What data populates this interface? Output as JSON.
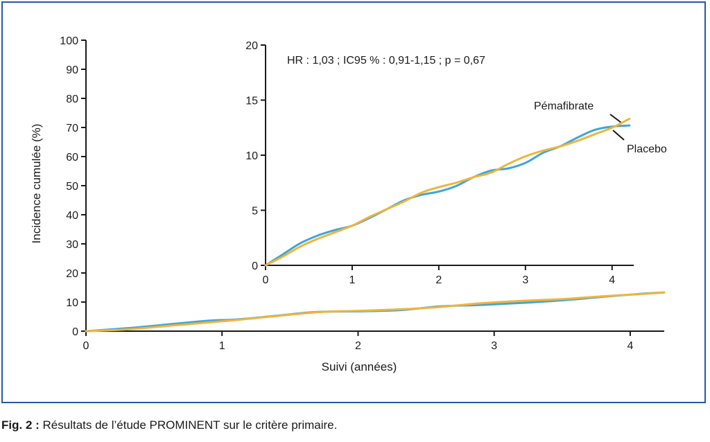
{
  "colors": {
    "frame": "#2457a8",
    "placebo": "#3ea6d8",
    "pemafibrate": "#f0b43c"
  },
  "caption": {
    "label": "Fig. 2 :",
    "text": " Résultats de l’étude PROMINENT sur le critère primaire."
  },
  "chart_data": [
    {
      "type": "line",
      "xlabel": "Suivi (années)",
      "ylabel": "Incidence cumulée (%)",
      "xlim": [
        0,
        4.25
      ],
      "ylim": [
        0,
        100
      ],
      "xticks": [
        0,
        1,
        2,
        3,
        4
      ],
      "yticks": [
        0,
        10,
        20,
        30,
        40,
        50,
        60,
        70,
        80,
        90,
        100
      ],
      "grid": false,
      "series": [
        {
          "name": "Placebo",
          "color": "#3ea6d8",
          "x": [
            0,
            0.3,
            0.6,
            0.9,
            1.1,
            1.4,
            1.7,
            2.0,
            2.3,
            2.6,
            2.9,
            3.2,
            3.5,
            3.8,
            4.1,
            4.25
          ],
          "y": [
            0,
            1.0,
            2.3,
            3.6,
            4.0,
            5.3,
            6.6,
            6.8,
            7.2,
            8.5,
            9.0,
            9.7,
            10.6,
            11.8,
            12.9,
            13.3
          ]
        },
        {
          "name": "Pémafibrate",
          "color": "#f0b43c",
          "x": [
            0,
            0.3,
            0.6,
            0.9,
            1.1,
            1.4,
            1.7,
            2.0,
            2.3,
            2.6,
            2.9,
            3.2,
            3.5,
            3.8,
            4.1,
            4.25
          ],
          "y": [
            0,
            0.6,
            1.8,
            3.0,
            3.8,
            5.2,
            6.5,
            7.0,
            7.5,
            8.3,
            9.6,
            10.4,
            11.0,
            12.0,
            12.8,
            13.3
          ]
        }
      ]
    },
    {
      "type": "line",
      "annotation": "HR : 1,03 ; IC95 % : 0,91-1,15 ; p = 0,67",
      "xlim": [
        0,
        4.25
      ],
      "ylim": [
        0,
        20
      ],
      "xticks": [
        0,
        1,
        2,
        3,
        4
      ],
      "yticks": [
        0,
        5,
        10,
        15,
        20
      ],
      "grid": false,
      "series": [
        {
          "name": "Placebo",
          "color": "#3ea6d8",
          "x": [
            0,
            0.2,
            0.4,
            0.6,
            0.8,
            1.0,
            1.2,
            1.4,
            1.6,
            1.8,
            2.0,
            2.2,
            2.4,
            2.6,
            2.8,
            3.0,
            3.2,
            3.4,
            3.6,
            3.8,
            4.0,
            4.2
          ],
          "y": [
            0,
            1.0,
            2.0,
            2.7,
            3.2,
            3.6,
            4.3,
            5.1,
            5.9,
            6.4,
            6.7,
            7.2,
            8.0,
            8.6,
            8.8,
            9.3,
            10.2,
            10.8,
            11.6,
            12.3,
            12.6,
            12.7
          ]
        },
        {
          "name": "Pémafibrate",
          "color": "#f0b43c",
          "x": [
            0,
            0.2,
            0.4,
            0.6,
            0.8,
            1.0,
            1.2,
            1.4,
            1.6,
            1.8,
            2.0,
            2.2,
            2.4,
            2.6,
            2.8,
            3.0,
            3.2,
            3.4,
            3.6,
            3.8,
            4.0,
            4.2
          ],
          "y": [
            0,
            0.8,
            1.7,
            2.4,
            3.0,
            3.6,
            4.4,
            5.1,
            5.8,
            6.6,
            7.1,
            7.5,
            8.0,
            8.4,
            9.2,
            9.9,
            10.4,
            10.8,
            11.3,
            11.9,
            12.5,
            13.3
          ]
        }
      ],
      "labels": [
        {
          "text": "Pémafibrate"
        },
        {
          "text": "Placebo"
        }
      ]
    }
  ]
}
